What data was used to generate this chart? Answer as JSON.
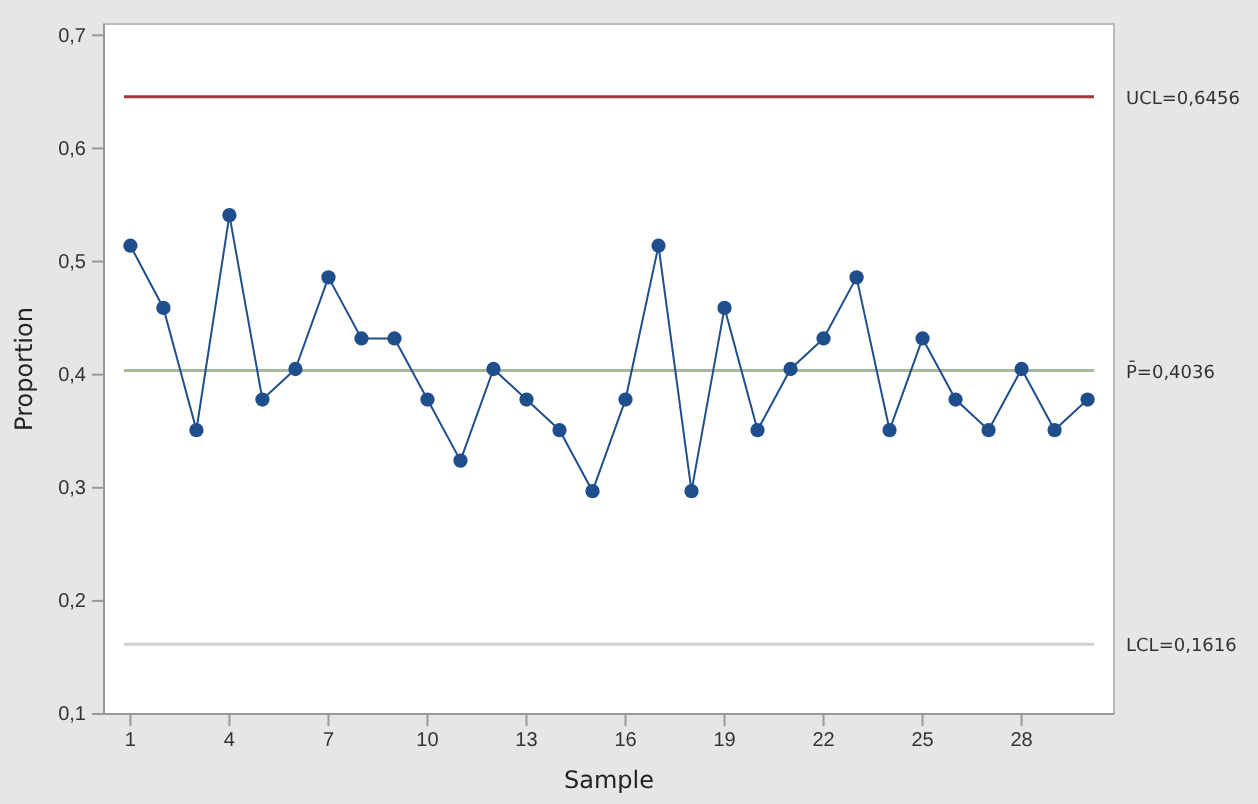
{
  "chart_data": {
    "type": "line",
    "xlabel": "Sample",
    "ylabel": "Proportion",
    "x": [
      1,
      2,
      3,
      4,
      5,
      6,
      7,
      8,
      9,
      10,
      11,
      12,
      13,
      14,
      15,
      16,
      17,
      18,
      19,
      20,
      21,
      22,
      23,
      24,
      25,
      26,
      27,
      28,
      29,
      30
    ],
    "series": [
      {
        "color": "#1f4e8c",
        "values": [
          0.514,
          0.459,
          0.351,
          0.541,
          0.378,
          0.405,
          0.486,
          0.432,
          0.432,
          0.378,
          0.324,
          0.405,
          0.378,
          0.351,
          0.297,
          0.378,
          0.514,
          0.297,
          0.459,
          0.351,
          0.405,
          0.432,
          0.486,
          0.351,
          0.432,
          0.378,
          0.351,
          0.405,
          0.351,
          0.378
        ]
      }
    ],
    "marker": "circle",
    "line_style": "solid",
    "xlim": [
      0.2,
      30.8
    ],
    "xticks": [
      1,
      4,
      7,
      10,
      13,
      16,
      19,
      22,
      25,
      28
    ],
    "ylim": [
      0.1,
      0.71
    ],
    "yticks": [
      {
        "value": 0.1,
        "label": "0,1"
      },
      {
        "value": 0.2,
        "label": "0,2"
      },
      {
        "value": 0.3,
        "label": "0,3"
      },
      {
        "value": 0.4,
        "label": "0,4"
      },
      {
        "value": 0.5,
        "label": "0,5"
      },
      {
        "value": 0.6,
        "label": "0,6"
      },
      {
        "value": 0.7,
        "label": "0,7"
      }
    ],
    "ref_lines": [
      {
        "axis": "y",
        "value": 0.6456,
        "label": "UCL=0,6456",
        "color": "#a3363c"
      },
      {
        "axis": "y",
        "value": 0.4036,
        "label": "P̄=0,4036",
        "color": "#a8b89a"
      },
      {
        "axis": "y",
        "value": 0.1616,
        "label": "LCL=0,1616",
        "color": "#cfcfcf"
      }
    ],
    "grid": false
  }
}
